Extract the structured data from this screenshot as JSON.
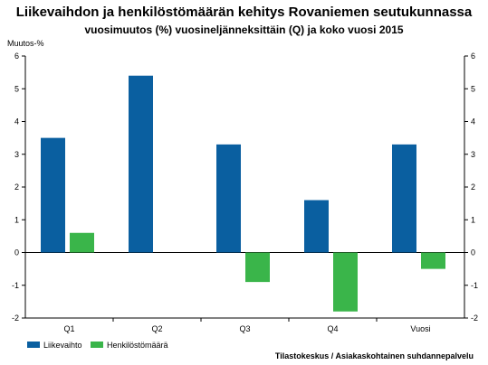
{
  "chart_data": {
    "type": "bar",
    "title": "Liikevaihdon ja henkilöstömäärän kehitys Rovaniemen seutukunnassa",
    "subtitle": "vuosimuutos (%) vuosineljänneksittäin (Q) ja koko vuosi 2015",
    "ylabel": "Muutos-%",
    "categories": [
      "Q1",
      "Q2",
      "Q3",
      "Q4",
      "Vuosi"
    ],
    "ylim": [
      -2,
      6
    ],
    "yticks": [
      "-2",
      "-1",
      "0",
      "1",
      "2",
      "3",
      "4",
      "5",
      "6"
    ],
    "series": [
      {
        "name": "Liikevaihto",
        "color": "#0a5fa0",
        "values": [
          3.5,
          5.4,
          3.3,
          1.6,
          3.3
        ]
      },
      {
        "name": "Henkilöstömäärä",
        "color": "#3ab54a",
        "values": [
          0.6,
          null,
          -0.9,
          -1.8,
          -0.5
        ]
      }
    ],
    "grid": false,
    "legend": "bottom-left",
    "source": "Tilastokeskus / Asiakaskohtainen suhdannepalvelu"
  }
}
